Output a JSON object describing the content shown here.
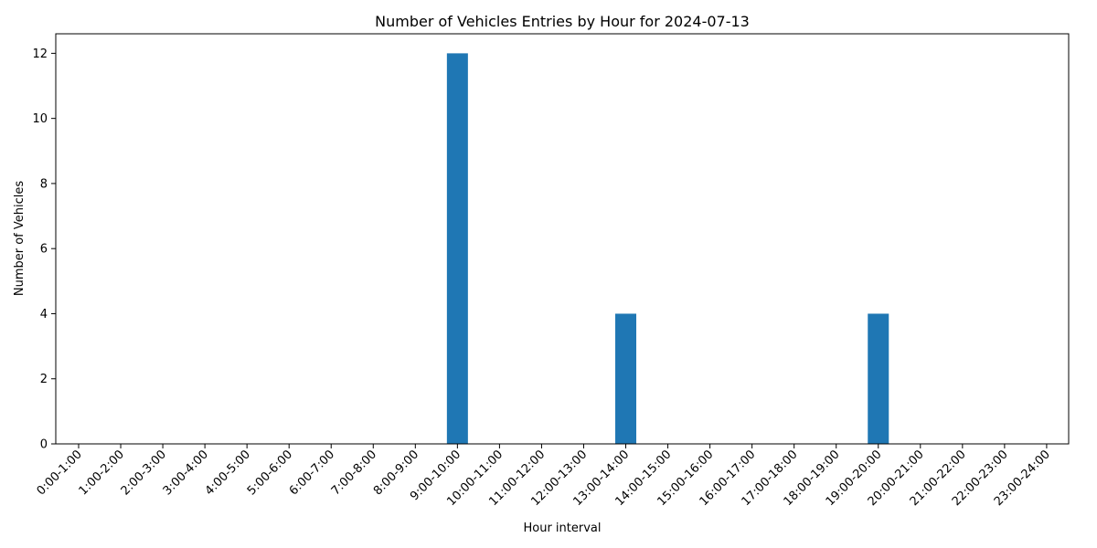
{
  "chart_data": {
    "type": "bar",
    "title": "Number of Vehicles Entries by Hour for 2024-07-13",
    "xlabel": "Hour interval",
    "ylabel": "Number of Vehicles",
    "categories": [
      "0:00-1:00",
      "1:00-2:00",
      "2:00-3:00",
      "3:00-4:00",
      "4:00-5:00",
      "5:00-6:00",
      "6:00-7:00",
      "7:00-8:00",
      "8:00-9:00",
      "9:00-10:00",
      "10:00-11:00",
      "11:00-12:00",
      "12:00-13:00",
      "13:00-14:00",
      "14:00-15:00",
      "15:00-16:00",
      "16:00-17:00",
      "17:00-18:00",
      "18:00-19:00",
      "19:00-20:00",
      "20:00-21:00",
      "21:00-22:00",
      "22:00-23:00",
      "23:00-24:00"
    ],
    "values": [
      0,
      0,
      0,
      0,
      0,
      0,
      0,
      0,
      0,
      12,
      0,
      0,
      0,
      4,
      0,
      0,
      0,
      0,
      0,
      4,
      0,
      0,
      0,
      0
    ],
    "yticks": [
      0,
      2,
      4,
      6,
      8,
      10,
      12
    ],
    "ylim": [
      0,
      12.6
    ],
    "grid": false,
    "bar_color": "#1f77b4"
  }
}
